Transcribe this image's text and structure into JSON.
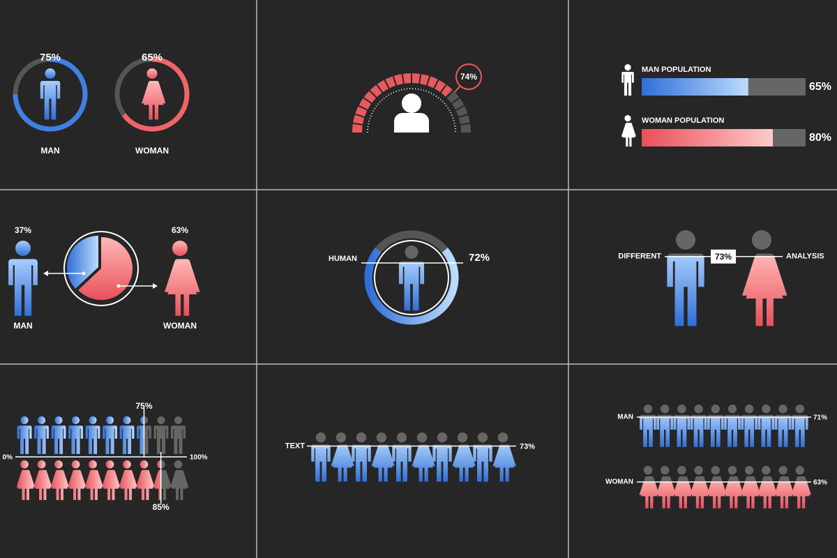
{
  "panels": [
    {
      "type": "rings",
      "items": [
        {
          "label": "MAN",
          "value": 75,
          "value_label": "75%",
          "color": "#3f80e6"
        },
        {
          "label": "WOMAN",
          "value": 65,
          "value_label": "65%",
          "color": "#f06468"
        }
      ]
    },
    {
      "type": "gauge",
      "value": 74,
      "value_label": "74%",
      "color": "#e85a5f"
    },
    {
      "type": "bars",
      "items": [
        {
          "label": "MAN POPULATION",
          "value": 65,
          "value_label": "65%"
        },
        {
          "label": "WOMAN POPULATION",
          "value": 80,
          "value_label": "80%"
        }
      ]
    },
    {
      "type": "pie",
      "items": [
        {
          "label": "MAN",
          "value": 37,
          "value_label": "37%"
        },
        {
          "label": "WOMAN",
          "value": 63,
          "value_label": "63%"
        }
      ]
    },
    {
      "type": "human-ring",
      "label": "HUMAN",
      "value": 72,
      "value_label": "72%"
    },
    {
      "type": "pair",
      "left_label": "DIFFERENT",
      "right_label": "ANALYSIS",
      "value": 73,
      "value_label": "73%"
    },
    {
      "type": "rows",
      "axis_min_label": "0%",
      "axis_max_label": "100%",
      "items": [
        {
          "value": 75,
          "value_label": "75%"
        },
        {
          "value": 85,
          "value_label": "85%"
        }
      ]
    },
    {
      "type": "row",
      "label": "TEXT",
      "value": 73,
      "value_label": "73%"
    },
    {
      "type": "rows-labeled",
      "items": [
        {
          "label": "MAN",
          "value": 71,
          "value_label": "71%"
        },
        {
          "label": "WOMAN",
          "value": 63,
          "value_label": "63%"
        }
      ]
    }
  ]
}
